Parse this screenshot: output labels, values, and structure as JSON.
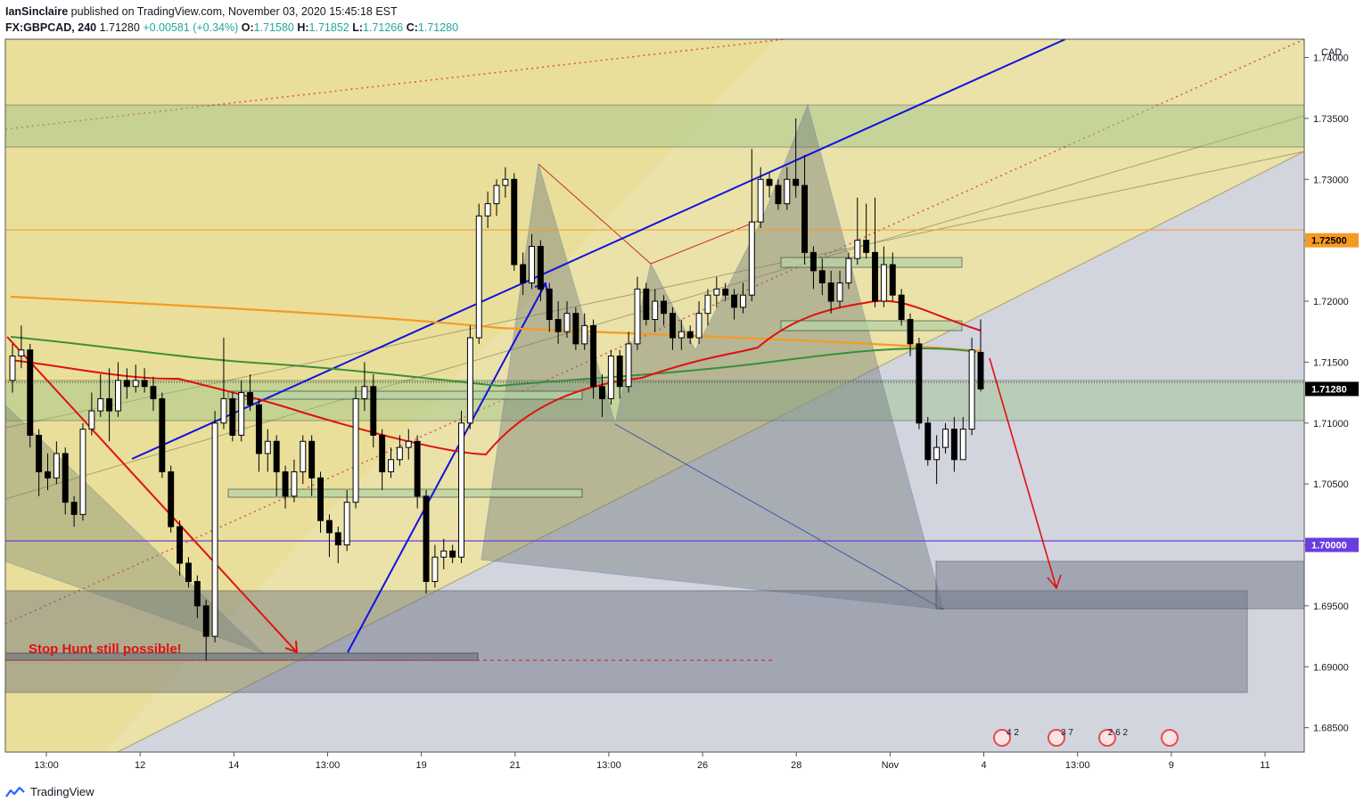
{
  "header": {
    "publisher": "IanSinclaire",
    "published_text": "published on TradingView.com, November 03, 2020 15:45:18 EST",
    "symbol": "FX:GBPCAD, 240",
    "last": "1.71280",
    "change": "+0.00581 (+0.34%)",
    "o_label": "O:",
    "o": "1.71580",
    "h_label": "H:",
    "h": "1.71852",
    "l_label": "L:",
    "l": "1.71266",
    "c_label": "C:",
    "c": "1.71280"
  },
  "footer": {
    "brand": "TradingView"
  },
  "colors": {
    "up": "#ffffff",
    "down": "#000000",
    "ma_red": "#e01010",
    "ma_green": "#3a8f3a",
    "ma_orange": "#f59a23",
    "trend_blue": "#1212e0",
    "forecast_red": "#e01010",
    "price_label_bg": "#000000",
    "level_orange": "#f59a23",
    "level_purple": "#6a3de0"
  },
  "chart_data": {
    "type": "candlestick",
    "timeframe": "240",
    "currency": "CAD",
    "ylim": [
      1.683,
      1.7415
    ],
    "y_ticks": [
      "1.74000",
      "1.73500",
      "1.73000",
      "1.72500",
      "1.72000",
      "1.71500",
      "1.71000",
      "1.70500",
      "1.70000",
      "1.69500",
      "1.69000",
      "1.68500"
    ],
    "y_highlight": [
      {
        "label": "1.72500",
        "value": 1.725,
        "style": "orange"
      },
      {
        "label": "1.71280",
        "value": 1.7128,
        "style": "black"
      },
      {
        "label": "1.70000",
        "value": 1.7,
        "style": "purple"
      }
    ],
    "x_ticks": [
      "13:00",
      "12",
      "14",
      "13:00",
      "19",
      "21",
      "13:00",
      "26",
      "28",
      "Nov",
      "4",
      "13:00",
      "9",
      "11"
    ],
    "annotation": "Stop Hunt still possible!",
    "events": [
      "4 2",
      "3 7",
      "2 6 2",
      ""
    ],
    "candles": [
      [
        1.7135,
        1.7155,
        1.7165,
        1.7125
      ],
      [
        1.7155,
        1.716,
        1.718,
        1.7145
      ],
      [
        1.716,
        1.709,
        1.7165,
        1.708
      ],
      [
        1.709,
        1.706,
        1.7095,
        1.704
      ],
      [
        1.706,
        1.7055,
        1.7075,
        1.7045
      ],
      [
        1.7055,
        1.7075,
        1.7085,
        1.705
      ],
      [
        1.7075,
        1.7035,
        1.708,
        1.7025
      ],
      [
        1.7035,
        1.7025,
        1.704,
        1.7015
      ],
      [
        1.7025,
        1.7095,
        1.71,
        1.702
      ],
      [
        1.7095,
        1.711,
        1.7125,
        1.709
      ],
      [
        1.711,
        1.712,
        1.714,
        1.7105
      ],
      [
        1.712,
        1.711,
        1.7145,
        1.7085
      ],
      [
        1.711,
        1.7135,
        1.715,
        1.7105
      ],
      [
        1.7135,
        1.713,
        1.7145,
        1.712
      ],
      [
        1.713,
        1.7135,
        1.7148,
        1.7125
      ],
      [
        1.7135,
        1.713,
        1.7145,
        1.7125
      ],
      [
        1.713,
        1.712,
        1.7138,
        1.711
      ],
      [
        1.712,
        1.706,
        1.7125,
        1.7055
      ],
      [
        1.706,
        1.7015,
        1.7065,
        1.701
      ],
      [
        1.7015,
        1.6985,
        1.702,
        1.6975
      ],
      [
        1.6985,
        1.697,
        1.699,
        1.6965
      ],
      [
        1.697,
        1.695,
        1.6975,
        1.694
      ],
      [
        1.695,
        1.6925,
        1.6955,
        1.6905
      ],
      [
        1.6925,
        1.71,
        1.711,
        1.692
      ],
      [
        1.71,
        1.712,
        1.717,
        1.7095
      ],
      [
        1.712,
        1.709,
        1.7125,
        1.7085
      ],
      [
        1.709,
        1.7125,
        1.7135,
        1.7085
      ],
      [
        1.7125,
        1.7115,
        1.714,
        1.711
      ],
      [
        1.7115,
        1.7075,
        1.712,
        1.706
      ],
      [
        1.7075,
        1.7085,
        1.7095,
        1.706
      ],
      [
        1.7085,
        1.706,
        1.709,
        1.704
      ],
      [
        1.706,
        1.704,
        1.7065,
        1.703
      ],
      [
        1.704,
        1.706,
        1.707,
        1.7035
      ],
      [
        1.706,
        1.7085,
        1.709,
        1.705
      ],
      [
        1.7085,
        1.7055,
        1.709,
        1.704
      ],
      [
        1.7055,
        1.702,
        1.706,
        1.701
      ],
      [
        1.702,
        1.701,
        1.7025,
        1.699
      ],
      [
        1.701,
        1.7,
        1.7015,
        1.6985
      ],
      [
        1.7,
        1.7035,
        1.7045,
        1.6995
      ],
      [
        1.7035,
        1.712,
        1.713,
        1.703
      ],
      [
        1.712,
        1.713,
        1.715,
        1.711
      ],
      [
        1.713,
        1.709,
        1.714,
        1.708
      ],
      [
        1.709,
        1.706,
        1.7095,
        1.7045
      ],
      [
        1.706,
        1.707,
        1.708,
        1.7055
      ],
      [
        1.707,
        1.708,
        1.709,
        1.7065
      ],
      [
        1.708,
        1.7085,
        1.7095,
        1.707
      ],
      [
        1.7085,
        1.704,
        1.709,
        1.703
      ],
      [
        1.704,
        1.697,
        1.7045,
        1.696
      ],
      [
        1.697,
        1.699,
        1.7,
        1.6965
      ],
      [
        1.699,
        1.6995,
        1.7005,
        1.698
      ],
      [
        1.6995,
        1.699,
        1.7,
        1.6985
      ],
      [
        1.699,
        1.71,
        1.711,
        1.6985
      ],
      [
        1.71,
        1.717,
        1.718,
        1.7095
      ],
      [
        1.717,
        1.727,
        1.728,
        1.7165
      ],
      [
        1.727,
        1.728,
        1.729,
        1.726
      ],
      [
        1.728,
        1.7295,
        1.73,
        1.727
      ],
      [
        1.7295,
        1.73,
        1.731,
        1.7285
      ],
      [
        1.73,
        1.723,
        1.7305,
        1.7225
      ],
      [
        1.723,
        1.7215,
        1.724,
        1.7205
      ],
      [
        1.7215,
        1.7245,
        1.7255,
        1.721
      ],
      [
        1.7245,
        1.721,
        1.725,
        1.72
      ],
      [
        1.721,
        1.7185,
        1.7215,
        1.7175
      ],
      [
        1.7185,
        1.7175,
        1.72,
        1.7165
      ],
      [
        1.7175,
        1.719,
        1.72,
        1.717
      ],
      [
        1.719,
        1.7165,
        1.7195,
        1.716
      ],
      [
        1.7165,
        1.718,
        1.719,
        1.716
      ],
      [
        1.718,
        1.713,
        1.7185,
        1.712
      ],
      [
        1.713,
        1.712,
        1.714,
        1.7105
      ],
      [
        1.712,
        1.7155,
        1.716,
        1.7115
      ],
      [
        1.7155,
        1.713,
        1.716,
        1.712
      ],
      [
        1.713,
        1.7165,
        1.7175,
        1.7125
      ],
      [
        1.7165,
        1.721,
        1.722,
        1.716
      ],
      [
        1.721,
        1.7185,
        1.7215,
        1.718
      ],
      [
        1.7185,
        1.72,
        1.721,
        1.7175
      ],
      [
        1.72,
        1.719,
        1.7205,
        1.718
      ],
      [
        1.719,
        1.717,
        1.7195,
        1.716
      ],
      [
        1.717,
        1.7175,
        1.7185,
        1.716
      ],
      [
        1.7175,
        1.717,
        1.718,
        1.7165
      ],
      [
        1.717,
        1.719,
        1.72,
        1.7165
      ],
      [
        1.719,
        1.7205,
        1.721,
        1.718
      ],
      [
        1.7205,
        1.721,
        1.722,
        1.7195
      ],
      [
        1.721,
        1.7205,
        1.7215,
        1.72
      ],
      [
        1.7205,
        1.7195,
        1.721,
        1.7185
      ],
      [
        1.7195,
        1.7205,
        1.7215,
        1.719
      ],
      [
        1.7205,
        1.7265,
        1.7325,
        1.72
      ],
      [
        1.7265,
        1.73,
        1.731,
        1.726
      ],
      [
        1.73,
        1.7295,
        1.7305,
        1.7285
      ],
      [
        1.7295,
        1.728,
        1.73,
        1.7275
      ],
      [
        1.728,
        1.73,
        1.731,
        1.7275
      ],
      [
        1.73,
        1.7295,
        1.735,
        1.7285
      ],
      [
        1.7295,
        1.724,
        1.732,
        1.723
      ],
      [
        1.724,
        1.7225,
        1.7245,
        1.721
      ],
      [
        1.7225,
        1.7215,
        1.7235,
        1.7205
      ],
      [
        1.7215,
        1.72,
        1.7225,
        1.719
      ],
      [
        1.72,
        1.7215,
        1.7225,
        1.7195
      ],
      [
        1.7215,
        1.7235,
        1.724,
        1.721
      ],
      [
        1.7235,
        1.725,
        1.7285,
        1.723
      ],
      [
        1.725,
        1.724,
        1.728,
        1.7235
      ],
      [
        1.724,
        1.72,
        1.7285,
        1.7195
      ],
      [
        1.72,
        1.723,
        1.7245,
        1.7195
      ],
      [
        1.723,
        1.7205,
        1.724,
        1.72
      ],
      [
        1.7205,
        1.7185,
        1.721,
        1.718
      ],
      [
        1.7185,
        1.7165,
        1.719,
        1.7155
      ],
      [
        1.7165,
        1.71,
        1.717,
        1.7095
      ],
      [
        1.71,
        1.707,
        1.7105,
        1.7065
      ],
      [
        1.707,
        1.708,
        1.709,
        1.705
      ],
      [
        1.708,
        1.7095,
        1.71,
        1.7075
      ],
      [
        1.7095,
        1.707,
        1.7105,
        1.706
      ],
      [
        1.707,
        1.7095,
        1.7105,
        1.707
      ],
      [
        1.7095,
        1.716,
        1.717,
        1.709
      ],
      [
        1.7158,
        1.7128,
        1.7185,
        1.7126
      ]
    ]
  }
}
